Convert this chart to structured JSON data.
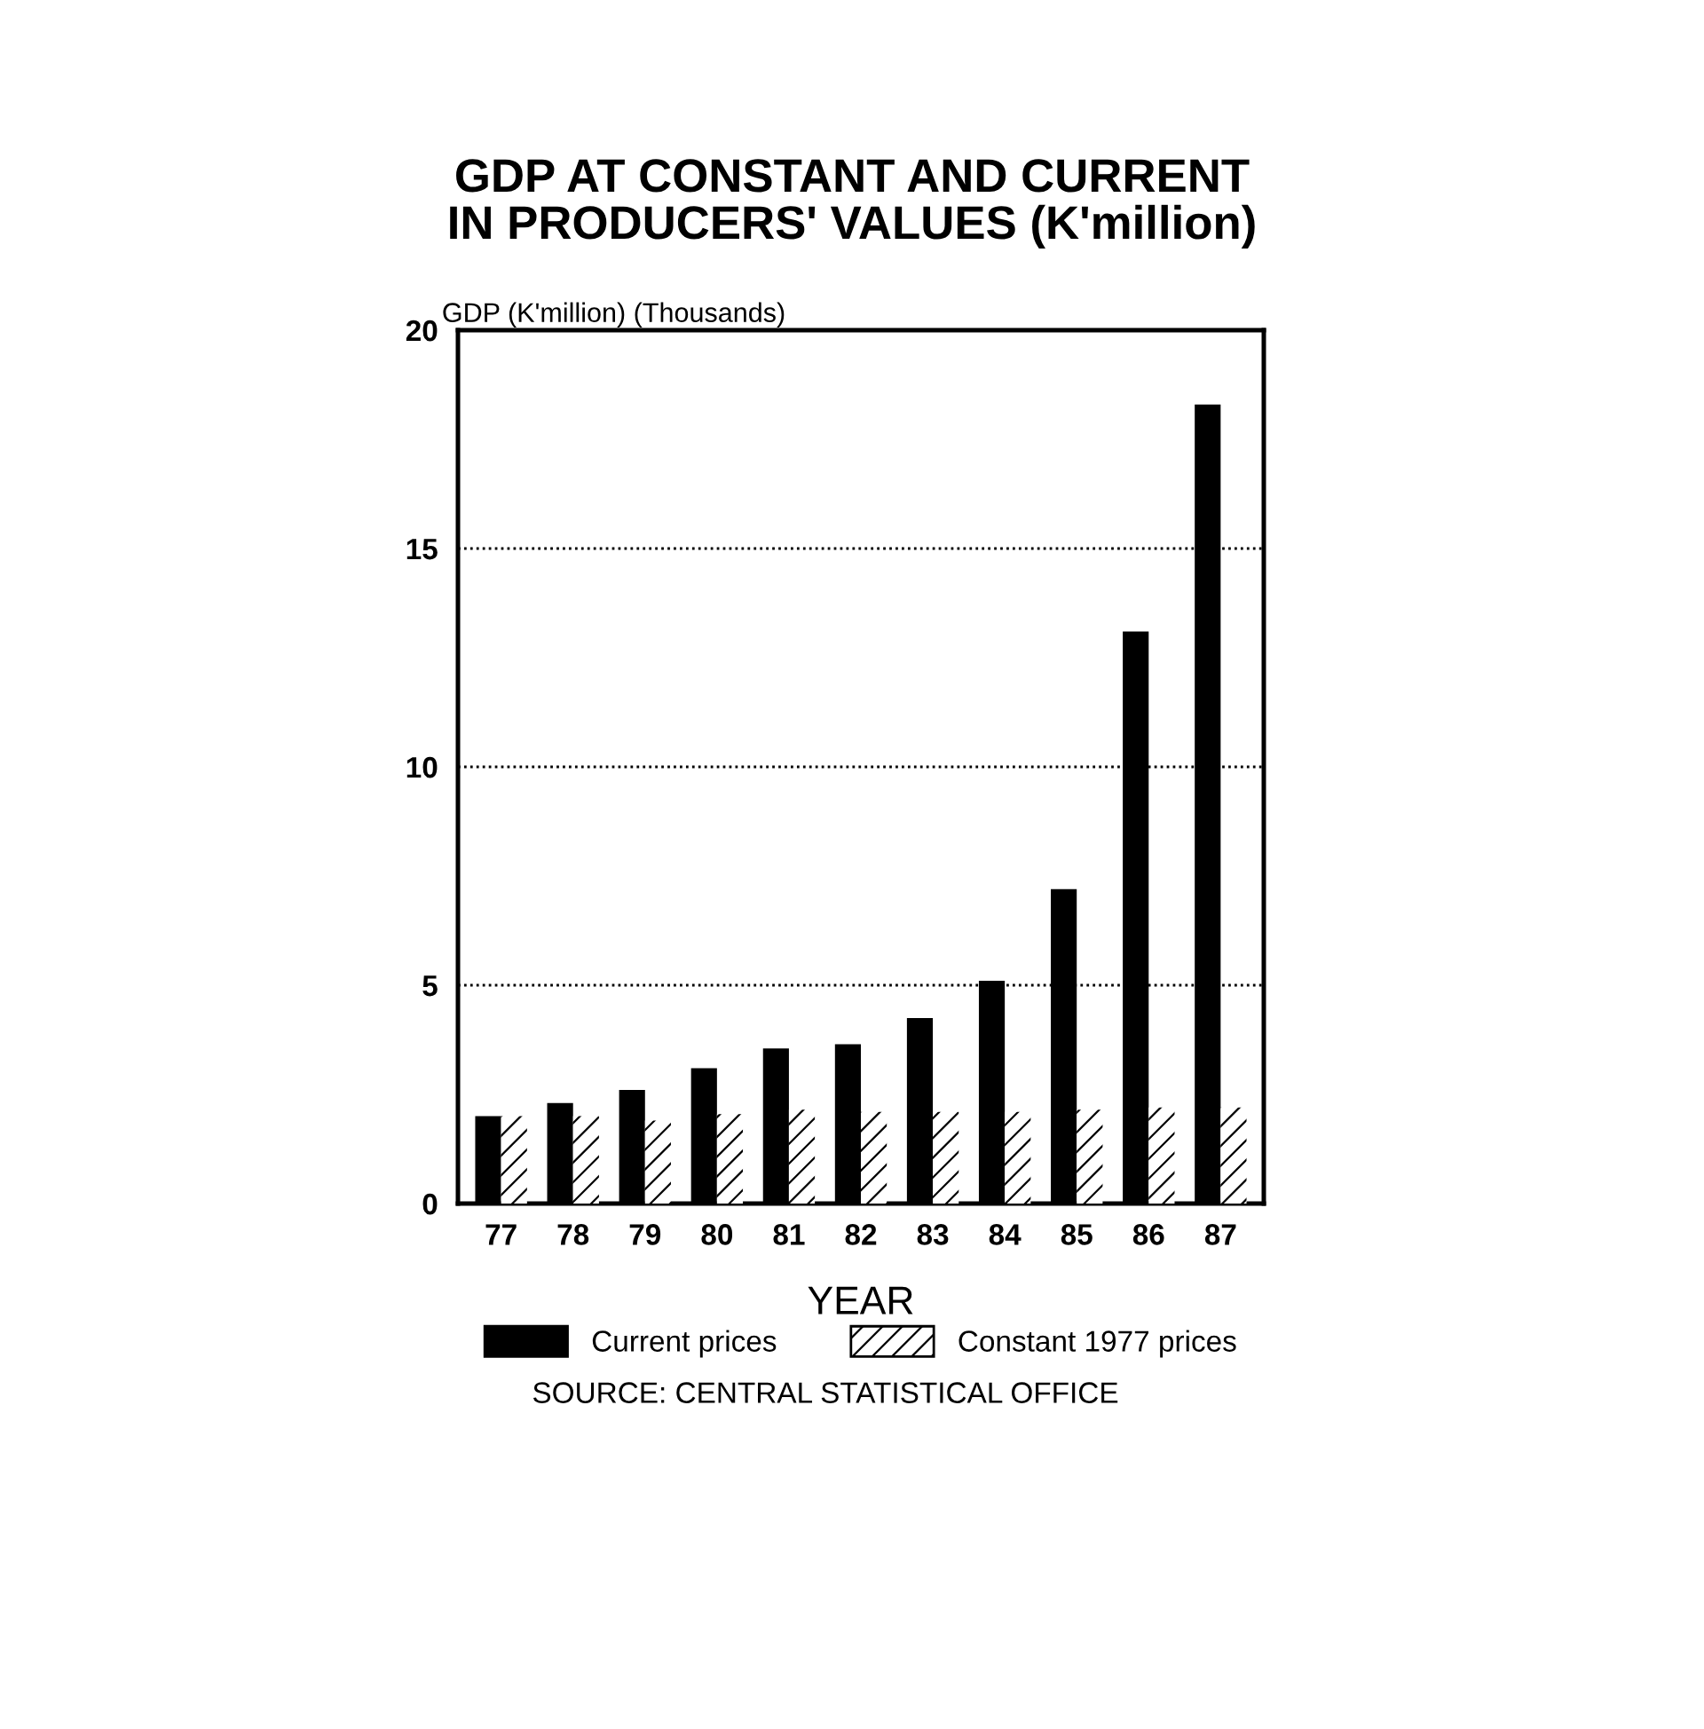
{
  "chart_data": {
    "type": "bar",
    "title": "GDP AT CONSTANT AND CURRENT\nIN PRODUCERS' VALUES (K'million)",
    "ylabel": "GDP (K'million) (Thousands)",
    "xlabel": "YEAR",
    "categories": [
      "77",
      "78",
      "79",
      "80",
      "81",
      "82",
      "83",
      "84",
      "85",
      "86",
      "87"
    ],
    "series": [
      {
        "name": "Current prices",
        "color": "#000000",
        "values": [
          2.0,
          2.3,
          2.6,
          3.1,
          3.55,
          3.65,
          4.25,
          5.1,
          7.2,
          13.1,
          18.3
        ]
      },
      {
        "name": "Constant 1977 prices",
        "color": "#ffffff",
        "values": [
          2.0,
          2.0,
          1.9,
          2.05,
          2.15,
          2.1,
          2.1,
          2.1,
          2.15,
          2.2,
          2.2
        ]
      }
    ],
    "ylim": [
      0,
      20
    ],
    "yticks": [
      0,
      5,
      10,
      15,
      20
    ],
    "grid": "y",
    "legend": "bottom",
    "annotations": [
      "SOURCE: CENTRAL STATISTICAL OFFICE"
    ]
  }
}
